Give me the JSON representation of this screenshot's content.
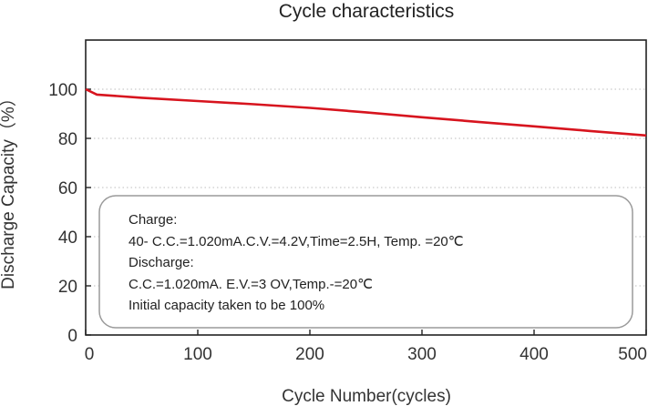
{
  "chart_data": {
    "type": "line",
    "title": "Cycle characteristics",
    "xlabel": "Cycle Number(cycles)",
    "ylabel": "Discharge Capacity（%）",
    "xlim": [
      0,
      500
    ],
    "ylim": [
      0,
      120
    ],
    "x_ticks": [
      0,
      100,
      200,
      300,
      400,
      500
    ],
    "y_ticks": [
      0,
      20,
      40,
      60,
      80,
      100
    ],
    "grid": "horizontal-dotted",
    "series": [
      {
        "color": "#d7141e",
        "x": [
          0,
          10,
          50,
          100,
          150,
          200,
          250,
          300,
          350,
          400,
          450,
          500
        ],
        "y": [
          100,
          97.8,
          96.5,
          95.2,
          93.9,
          92.4,
          90.6,
          88.6,
          86.7,
          84.9,
          83.0,
          81.2
        ]
      }
    ],
    "annotation": {
      "lines": [
        "Charge:",
        "40- C.C.=1.020mA.C.V.=4.2V,Time=2.5H, Temp. =20℃",
        "Discharge:",
        "C.C.=1.020mA. E.V.=3 OV,Temp.-=20℃",
        "Initial capacity taken to be 100%"
      ]
    }
  }
}
